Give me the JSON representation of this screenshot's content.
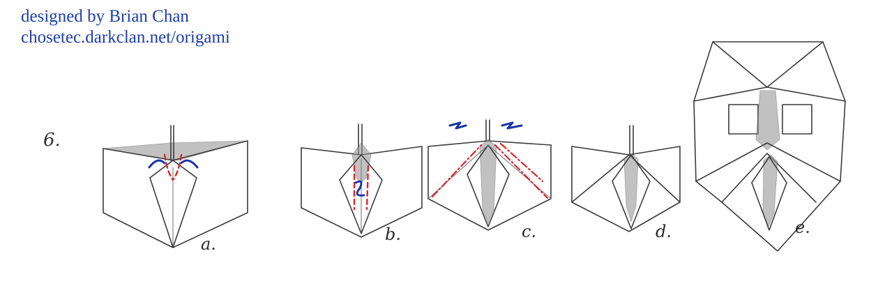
{
  "credit": {
    "line1": "designed by Brian Chan",
    "line2": "chosetec.darkclan.net/origami"
  },
  "step": {
    "number": "6."
  },
  "panels": [
    {
      "label": "a."
    },
    {
      "label": "b."
    },
    {
      "label": "c."
    },
    {
      "label": "d."
    },
    {
      "label": "e."
    }
  ],
  "colors": {
    "credit_text": "#1f3ea8",
    "pencil": "#3b3b3b",
    "crease_red": "#d9262b",
    "arrow_blue": "#1b35a8"
  }
}
